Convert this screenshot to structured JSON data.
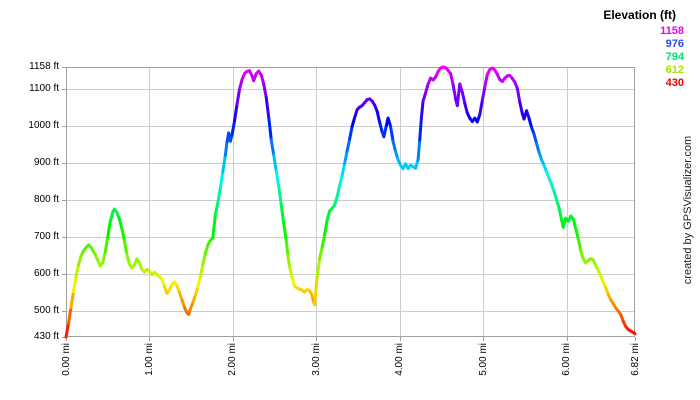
{
  "watermark": "created by GPSVisualizer.com",
  "legend": {
    "title": "Elevation (ft)",
    "items": [
      {
        "label": "1158",
        "color": "#f000f0"
      },
      {
        "label": "976",
        "color": "#2d4df0"
      },
      {
        "label": "794",
        "color": "#00e273"
      },
      {
        "label": "612",
        "color": "#a8e000"
      },
      {
        "label": "430",
        "color": "#ee0000"
      }
    ]
  },
  "colors": {
    "background": "#ffffff",
    "grid": "#cccccc",
    "border": "#a0a0a0",
    "tick": "#a0a0a0",
    "tick_label": "#000000",
    "watermark": "#222222"
  },
  "chart_data": {
    "type": "line",
    "title": "",
    "x_unit": "mi",
    "y_unit": "ft",
    "xlim": [
      0,
      6.82
    ],
    "ylim": [
      430,
      1158
    ],
    "grid": true,
    "legend_position": "top-right",
    "colorize": "rainbow-by-elevation (red=430ft low, magenta=1158ft high)",
    "x_ticks": [
      {
        "value": 0,
        "label": "0.00 mi"
      },
      {
        "value": 1,
        "label": "1.00 mi"
      },
      {
        "value": 2,
        "label": "2.00 mi"
      },
      {
        "value": 3,
        "label": "3.00 mi"
      },
      {
        "value": 4,
        "label": "4.00 mi"
      },
      {
        "value": 5,
        "label": "5.00 mi"
      },
      {
        "value": 6,
        "label": "6.00 mi"
      },
      {
        "value": 6.82,
        "label": "6.82 mi"
      }
    ],
    "y_ticks": [
      {
        "value": 1158,
        "label": "1158 ft"
      },
      {
        "value": 1100,
        "label": "1100 ft"
      },
      {
        "value": 1000,
        "label": "1000 ft"
      },
      {
        "value": 900,
        "label": "900 ft"
      },
      {
        "value": 800,
        "label": "800 ft"
      },
      {
        "value": 700,
        "label": "700 ft"
      },
      {
        "value": 600,
        "label": "600 ft"
      },
      {
        "value": 500,
        "label": "500 ft"
      },
      {
        "value": 430,
        "label": "430 ft"
      }
    ],
    "x_gridlines": [
      1,
      2,
      3,
      4,
      5,
      6
    ],
    "y_gridlines": [
      1100,
      1000,
      900,
      800,
      700,
      600,
      500
    ],
    "points": [
      [
        0.0,
        430
      ],
      [
        0.03,
        466
      ],
      [
        0.06,
        510
      ],
      [
        0.09,
        552
      ],
      [
        0.12,
        592
      ],
      [
        0.15,
        625
      ],
      [
        0.18,
        648
      ],
      [
        0.21,
        662
      ],
      [
        0.24,
        671
      ],
      [
        0.27,
        678
      ],
      [
        0.3,
        672
      ],
      [
        0.33,
        660
      ],
      [
        0.36,
        648
      ],
      [
        0.39,
        632
      ],
      [
        0.41,
        622
      ],
      [
        0.44,
        630
      ],
      [
        0.47,
        658
      ],
      [
        0.5,
        700
      ],
      [
        0.53,
        740
      ],
      [
        0.56,
        766
      ],
      [
        0.58,
        775
      ],
      [
        0.61,
        766
      ],
      [
        0.64,
        748
      ],
      [
        0.67,
        722
      ],
      [
        0.7,
        690
      ],
      [
        0.73,
        652
      ],
      [
        0.76,
        627
      ],
      [
        0.79,
        616
      ],
      [
        0.82,
        624
      ],
      [
        0.85,
        640
      ],
      [
        0.88,
        630
      ],
      [
        0.91,
        612
      ],
      [
        0.94,
        605
      ],
      [
        0.97,
        612
      ],
      [
        1.0,
        607
      ],
      [
        1.03,
        598
      ],
      [
        1.06,
        604
      ],
      [
        1.09,
        599
      ],
      [
        1.12,
        592
      ],
      [
        1.15,
        586
      ],
      [
        1.18,
        566
      ],
      [
        1.21,
        548
      ],
      [
        1.24,
        556
      ],
      [
        1.27,
        572
      ],
      [
        1.3,
        578
      ],
      [
        1.33,
        568
      ],
      [
        1.36,
        550
      ],
      [
        1.39,
        530
      ],
      [
        1.42,
        510
      ],
      [
        1.45,
        495
      ],
      [
        1.47,
        491
      ],
      [
        1.49,
        505
      ],
      [
        1.52,
        522
      ],
      [
        1.55,
        542
      ],
      [
        1.58,
        565
      ],
      [
        1.61,
        592
      ],
      [
        1.64,
        625
      ],
      [
        1.67,
        655
      ],
      [
        1.7,
        678
      ],
      [
        1.73,
        690
      ],
      [
        1.76,
        697
      ],
      [
        1.79,
        760
      ],
      [
        1.82,
        792
      ],
      [
        1.85,
        832
      ],
      [
        1.88,
        876
      ],
      [
        1.91,
        920
      ],
      [
        1.93,
        956
      ],
      [
        1.95,
        980
      ],
      [
        1.97,
        958
      ],
      [
        1.99,
        975
      ],
      [
        2.02,
        1012
      ],
      [
        2.05,
        1058
      ],
      [
        2.08,
        1098
      ],
      [
        2.11,
        1124
      ],
      [
        2.14,
        1140
      ],
      [
        2.17,
        1146
      ],
      [
        2.2,
        1148
      ],
      [
        2.23,
        1134
      ],
      [
        2.25,
        1121
      ],
      [
        2.28,
        1140
      ],
      [
        2.31,
        1147
      ],
      [
        2.34,
        1137
      ],
      [
        2.37,
        1112
      ],
      [
        2.4,
        1076
      ],
      [
        2.43,
        1022
      ],
      [
        2.46,
        962
      ],
      [
        2.49,
        920
      ],
      [
        2.52,
        878
      ],
      [
        2.55,
        836
      ],
      [
        2.58,
        786
      ],
      [
        2.61,
        736
      ],
      [
        2.64,
        690
      ],
      [
        2.66,
        650
      ],
      [
        2.68,
        618
      ],
      [
        2.71,
        590
      ],
      [
        2.74,
        567
      ],
      [
        2.77,
        562
      ],
      [
        2.8,
        559
      ],
      [
        2.83,
        556
      ],
      [
        2.86,
        551
      ],
      [
        2.89,
        558
      ],
      [
        2.92,
        555
      ],
      [
        2.94,
        547
      ],
      [
        2.96,
        531
      ],
      [
        2.98,
        517
      ],
      [
        3.01,
        592
      ],
      [
        3.04,
        640
      ],
      [
        3.07,
        672
      ],
      [
        3.1,
        706
      ],
      [
        3.13,
        745
      ],
      [
        3.16,
        770
      ],
      [
        3.19,
        777
      ],
      [
        3.22,
        786
      ],
      [
        3.25,
        808
      ],
      [
        3.28,
        838
      ],
      [
        3.31,
        866
      ],
      [
        3.34,
        898
      ],
      [
        3.37,
        932
      ],
      [
        3.4,
        964
      ],
      [
        3.43,
        998
      ],
      [
        3.46,
        1022
      ],
      [
        3.49,
        1043
      ],
      [
        3.52,
        1050
      ],
      [
        3.55,
        1054
      ],
      [
        3.58,
        1062
      ],
      [
        3.61,
        1070
      ],
      [
        3.64,
        1072
      ],
      [
        3.67,
        1066
      ],
      [
        3.7,
        1055
      ],
      [
        3.73,
        1038
      ],
      [
        3.76,
        1008
      ],
      [
        3.79,
        982
      ],
      [
        3.81,
        970
      ],
      [
        3.84,
        1000
      ],
      [
        3.86,
        1020
      ],
      [
        3.89,
        998
      ],
      [
        3.92,
        958
      ],
      [
        3.95,
        930
      ],
      [
        3.98,
        908
      ],
      [
        4.01,
        893
      ],
      [
        4.04,
        884
      ],
      [
        4.07,
        897
      ],
      [
        4.1,
        884
      ],
      [
        4.13,
        893
      ],
      [
        4.16,
        889
      ],
      [
        4.19,
        885
      ],
      [
        4.22,
        908
      ],
      [
        4.24,
        962
      ],
      [
        4.26,
        1022
      ],
      [
        4.28,
        1066
      ],
      [
        4.31,
        1088
      ],
      [
        4.34,
        1112
      ],
      [
        4.37,
        1128
      ],
      [
        4.4,
        1123
      ],
      [
        4.43,
        1131
      ],
      [
        4.46,
        1146
      ],
      [
        4.49,
        1155
      ],
      [
        4.52,
        1158
      ],
      [
        4.55,
        1156
      ],
      [
        4.58,
        1149
      ],
      [
        4.61,
        1140
      ],
      [
        4.64,
        1110
      ],
      [
        4.67,
        1072
      ],
      [
        4.69,
        1054
      ],
      [
        4.72,
        1112
      ],
      [
        4.75,
        1090
      ],
      [
        4.78,
        1060
      ],
      [
        4.81,
        1034
      ],
      [
        4.84,
        1020
      ],
      [
        4.87,
        1011
      ],
      [
        4.9,
        1020
      ],
      [
        4.93,
        1010
      ],
      [
        4.96,
        1030
      ],
      [
        4.99,
        1068
      ],
      [
        5.02,
        1104
      ],
      [
        5.05,
        1138
      ],
      [
        5.08,
        1151
      ],
      [
        5.11,
        1155
      ],
      [
        5.14,
        1150
      ],
      [
        5.17,
        1138
      ],
      [
        5.2,
        1124
      ],
      [
        5.23,
        1119
      ],
      [
        5.26,
        1128
      ],
      [
        5.29,
        1134
      ],
      [
        5.32,
        1135
      ],
      [
        5.35,
        1127
      ],
      [
        5.38,
        1117
      ],
      [
        5.41,
        1100
      ],
      [
        5.44,
        1062
      ],
      [
        5.47,
        1032
      ],
      [
        5.49,
        1018
      ],
      [
        5.52,
        1040
      ],
      [
        5.55,
        1020
      ],
      [
        5.58,
        995
      ],
      [
        5.61,
        977
      ],
      [
        5.64,
        952
      ],
      [
        5.67,
        928
      ],
      [
        5.7,
        908
      ],
      [
        5.73,
        893
      ],
      [
        5.76,
        875
      ],
      [
        5.79,
        858
      ],
      [
        5.82,
        842
      ],
      [
        5.85,
        822
      ],
      [
        5.88,
        800
      ],
      [
        5.91,
        778
      ],
      [
        5.94,
        746
      ],
      [
        5.96,
        726
      ],
      [
        5.99,
        750
      ],
      [
        6.02,
        742
      ],
      [
        6.05,
        756
      ],
      [
        6.08,
        748
      ],
      [
        6.11,
        722
      ],
      [
        6.14,
        695
      ],
      [
        6.17,
        662
      ],
      [
        6.2,
        641
      ],
      [
        6.23,
        630
      ],
      [
        6.26,
        636
      ],
      [
        6.29,
        641
      ],
      [
        6.32,
        638
      ],
      [
        6.35,
        623
      ],
      [
        6.38,
        610
      ],
      [
        6.41,
        593
      ],
      [
        6.44,
        578
      ],
      [
        6.47,
        562
      ],
      [
        6.5,
        544
      ],
      [
        6.53,
        530
      ],
      [
        6.56,
        520
      ],
      [
        6.59,
        508
      ],
      [
        6.62,
        500
      ],
      [
        6.65,
        490
      ],
      [
        6.68,
        472
      ],
      [
        6.71,
        458
      ],
      [
        6.74,
        450
      ],
      [
        6.77,
        446
      ],
      [
        6.8,
        442
      ],
      [
        6.82,
        439
      ]
    ]
  }
}
